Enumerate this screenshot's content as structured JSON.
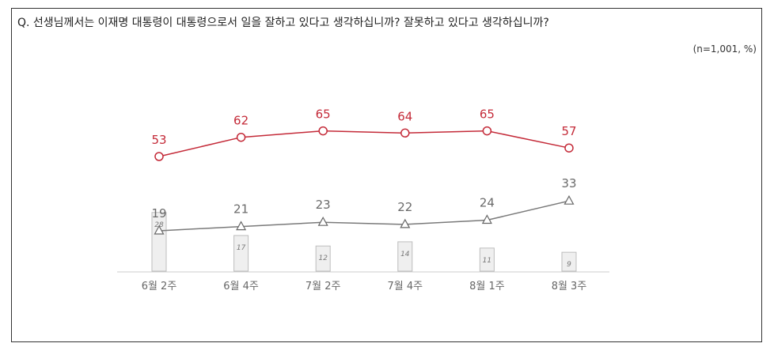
{
  "question": "Q. 선생님께서는 이재명 대통령이 대통령으로서 일을 잘하고 있다고 생각하십니까? 잘못하고 있다고 생각하십니까?",
  "note": "(n=1,001, %)",
  "chart_data": {
    "type": "line",
    "categories": [
      "6월 2주",
      "6월 4주",
      "7월 2주",
      "7월 4주",
      "8월 1주",
      "8월 3주"
    ],
    "series": [
      {
        "values": [
          53,
          62,
          65,
          64,
          65,
          57
        ],
        "color": "#c42a38",
        "marker": "circle"
      },
      {
        "values": [
          19,
          21,
          23,
          22,
          24,
          33
        ],
        "color": "#7a7a7a",
        "marker": "triangle"
      },
      {
        "values": [
          28,
          17,
          12,
          14,
          11,
          9
        ],
        "color": "#d9d9d9",
        "marker": "bar"
      }
    ],
    "grid": false
  }
}
